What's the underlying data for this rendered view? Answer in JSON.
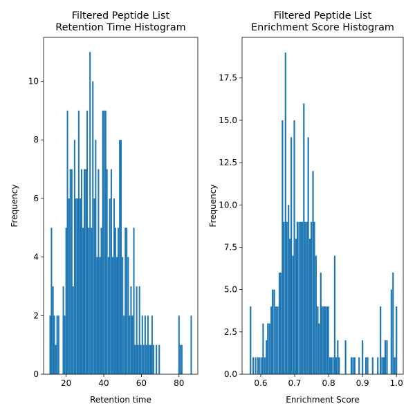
{
  "chart_data": [
    {
      "type": "bar",
      "title_line1": "Filtered Peptide List",
      "title_line2": "Retention Time Histogram",
      "xlabel": "Retention time",
      "ylabel": "Frequency",
      "xlim": [
        8,
        90
      ],
      "ylim": [
        0,
        11.5
      ],
      "xticks": [
        20,
        40,
        60,
        80
      ],
      "yticks": [
        0,
        2,
        4,
        6,
        8,
        10
      ],
      "ytick_labels": [
        "0",
        "2",
        "4",
        "6",
        "8",
        "10"
      ],
      "color": "#1f77b4",
      "grid": false,
      "bin_width": 0.75,
      "bins": [
        [
          11.5,
          2
        ],
        [
          12.2,
          5
        ],
        [
          13,
          3
        ],
        [
          13.7,
          2
        ],
        [
          14.5,
          1
        ],
        [
          15.2,
          2
        ],
        [
          16,
          2
        ],
        [
          18.5,
          3
        ],
        [
          19.2,
          2
        ],
        [
          20,
          5
        ],
        [
          20.7,
          9
        ],
        [
          21.5,
          6
        ],
        [
          22.2,
          7
        ],
        [
          23,
          7
        ],
        [
          23.7,
          3
        ],
        [
          24.5,
          8
        ],
        [
          25.2,
          6
        ],
        [
          26,
          6
        ],
        [
          26.7,
          9
        ],
        [
          27.5,
          6
        ],
        [
          28.2,
          7
        ],
        [
          29,
          5
        ],
        [
          29.7,
          7
        ],
        [
          30.5,
          7
        ],
        [
          31.2,
          9
        ],
        [
          32,
          5
        ],
        [
          32.7,
          11
        ],
        [
          33.5,
          5
        ],
        [
          34.2,
          10
        ],
        [
          35,
          6
        ],
        [
          35.7,
          8
        ],
        [
          36.5,
          4
        ],
        [
          37.2,
          7
        ],
        [
          38,
          4
        ],
        [
          38.7,
          5
        ],
        [
          39.5,
          9
        ],
        [
          40.2,
          9
        ],
        [
          41,
          9
        ],
        [
          41.7,
          7
        ],
        [
          42.5,
          4
        ],
        [
          43.2,
          6
        ],
        [
          44,
          7
        ],
        [
          44.7,
          4
        ],
        [
          45.5,
          6
        ],
        [
          46.2,
          5
        ],
        [
          47,
          4
        ],
        [
          47.7,
          5
        ],
        [
          48.5,
          8
        ],
        [
          49.2,
          8
        ],
        [
          50,
          4
        ],
        [
          50.7,
          2
        ],
        [
          51.5,
          5
        ],
        [
          52.2,
          5
        ],
        [
          53,
          4
        ],
        [
          53.7,
          2
        ],
        [
          54.5,
          3
        ],
        [
          55.2,
          2
        ],
        [
          56,
          5
        ],
        [
          56.7,
          1
        ],
        [
          57.5,
          3
        ],
        [
          58.2,
          1
        ],
        [
          59,
          3
        ],
        [
          59.7,
          1
        ],
        [
          60.5,
          2
        ],
        [
          61.2,
          1
        ],
        [
          62,
          2
        ],
        [
          62.7,
          1
        ],
        [
          63.5,
          2
        ],
        [
          64.2,
          1
        ],
        [
          65,
          1
        ],
        [
          65.7,
          2
        ],
        [
          66.5,
          1
        ],
        [
          68,
          1
        ],
        [
          69.5,
          1
        ],
        [
          80,
          2
        ],
        [
          80.7,
          1
        ],
        [
          81.5,
          1
        ],
        [
          86.5,
          2
        ]
      ]
    },
    {
      "type": "bar",
      "title_line1": "Filtered Peptide List",
      "title_line2": "Enrichment Score Histogram",
      "xlabel": "Enrichment Score",
      "ylabel": "Frequency",
      "xlim": [
        0.545,
        1.02
      ],
      "ylim": [
        0,
        19.9
      ],
      "xticks": [
        0.6,
        0.7,
        0.8,
        0.9,
        1.0
      ],
      "xtick_labels": [
        "0.6",
        "0.7",
        "0.8",
        "0.9",
        "1.0"
      ],
      "yticks": [
        0,
        2.5,
        5,
        7.5,
        10,
        12.5,
        15,
        17.5
      ],
      "ytick_labels": [
        "0.0",
        "2.5",
        "5.0",
        "7.5",
        "10.0",
        "12.5",
        "15.0",
        "17.5"
      ],
      "color": "#1f77b4",
      "grid": false,
      "bin_width": 0.0045,
      "bins": [
        [
          0.57,
          4
        ],
        [
          0.578,
          1
        ],
        [
          0.585,
          1
        ],
        [
          0.592,
          1
        ],
        [
          0.597,
          1
        ],
        [
          0.603,
          1
        ],
        [
          0.607,
          3
        ],
        [
          0.612,
          1
        ],
        [
          0.617,
          2
        ],
        [
          0.621,
          3
        ],
        [
          0.626,
          3
        ],
        [
          0.631,
          4
        ],
        [
          0.635,
          5
        ],
        [
          0.64,
          5
        ],
        [
          0.645,
          4
        ],
        [
          0.65,
          4
        ],
        [
          0.655,
          6
        ],
        [
          0.659,
          6
        ],
        [
          0.664,
          15
        ],
        [
          0.668,
          9
        ],
        [
          0.673,
          19
        ],
        [
          0.677,
          9
        ],
        [
          0.682,
          10
        ],
        [
          0.686,
          8
        ],
        [
          0.69,
          14
        ],
        [
          0.695,
          7
        ],
        [
          0.699,
          15
        ],
        [
          0.704,
          8
        ],
        [
          0.708,
          9
        ],
        [
          0.713,
          9
        ],
        [
          0.718,
          9
        ],
        [
          0.722,
          9
        ],
        [
          0.727,
          16
        ],
        [
          0.731,
          9
        ],
        [
          0.736,
          9
        ],
        [
          0.74,
          14
        ],
        [
          0.745,
          8
        ],
        [
          0.749,
          9
        ],
        [
          0.754,
          12
        ],
        [
          0.758,
          9
        ],
        [
          0.763,
          7
        ],
        [
          0.768,
          4
        ],
        [
          0.772,
          3
        ],
        [
          0.777,
          6
        ],
        [
          0.781,
          4
        ],
        [
          0.786,
          4
        ],
        [
          0.79,
          4
        ],
        [
          0.795,
          4
        ],
        [
          0.799,
          4
        ],
        [
          0.804,
          1
        ],
        [
          0.808,
          1
        ],
        [
          0.813,
          1
        ],
        [
          0.818,
          7
        ],
        [
          0.822,
          1
        ],
        [
          0.827,
          2
        ],
        [
          0.831,
          1
        ],
        [
          0.85,
          2
        ],
        [
          0.867,
          1
        ],
        [
          0.872,
          1
        ],
        [
          0.877,
          1
        ],
        [
          0.89,
          1
        ],
        [
          0.9,
          2
        ],
        [
          0.91,
          1
        ],
        [
          0.915,
          1
        ],
        [
          0.93,
          1
        ],
        [
          0.945,
          1
        ],
        [
          0.953,
          4
        ],
        [
          0.958,
          1
        ],
        [
          0.963,
          1
        ],
        [
          0.967,
          2
        ],
        [
          0.972,
          2
        ],
        [
          0.985,
          5
        ],
        [
          0.99,
          6
        ],
        [
          0.995,
          1
        ],
        [
          1,
          4
        ]
      ]
    }
  ]
}
